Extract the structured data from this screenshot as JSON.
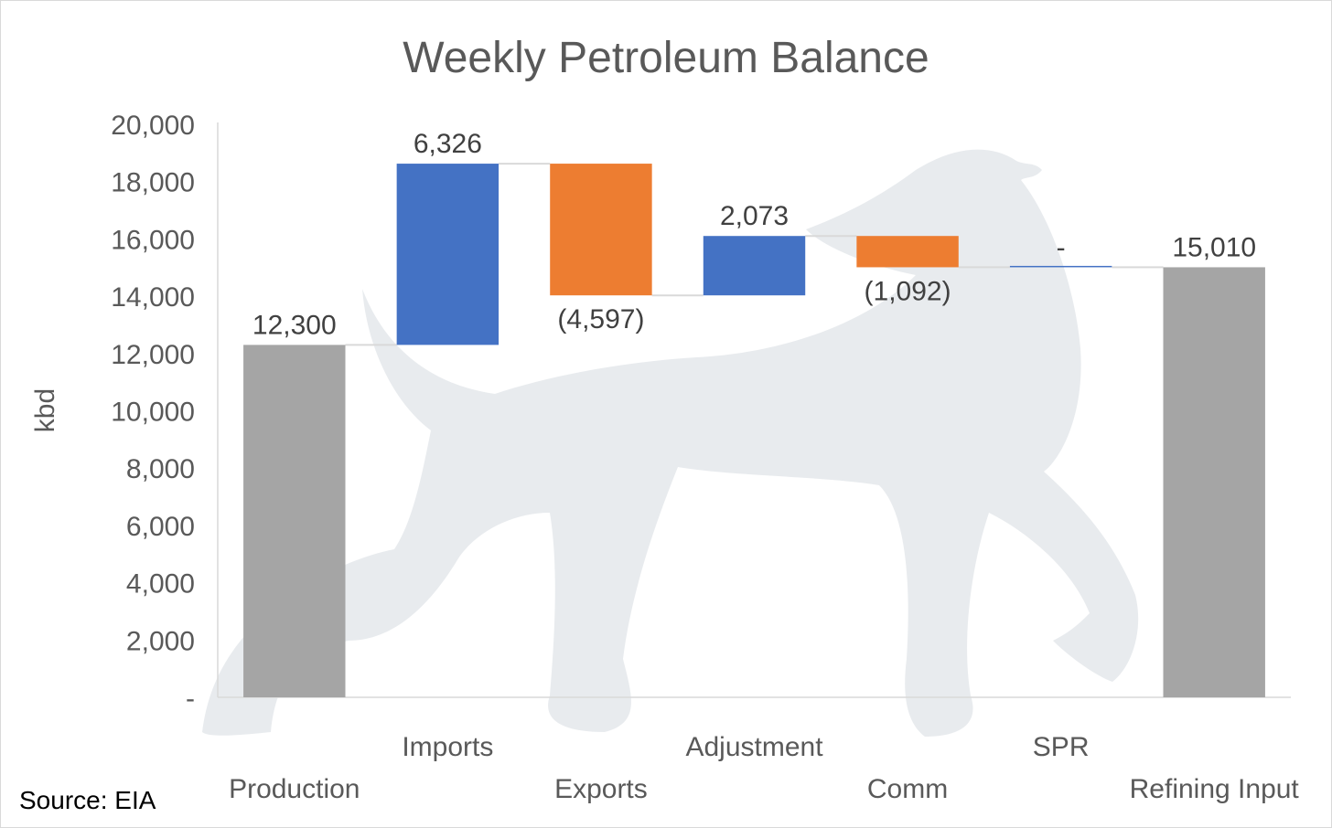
{
  "chart_data": {
    "type": "waterfall",
    "title": "Weekly Petroleum Balance",
    "ylabel": "kbd",
    "xlabel": "",
    "ylim": [
      0,
      20000
    ],
    "yticks": [
      0,
      2000,
      4000,
      6000,
      8000,
      10000,
      12000,
      14000,
      16000,
      18000,
      20000
    ],
    "ytick_labels": [
      "-",
      "2,000",
      "4,000",
      "6,000",
      "8,000",
      "10,000",
      "12,000",
      "14,000",
      "16,000",
      "18,000",
      "20,000"
    ],
    "categories": [
      "Production",
      "Imports",
      "Exports",
      "Adjustment",
      "Comm",
      "SPR",
      "Refining Input"
    ],
    "values": [
      12300,
      6326,
      -4597,
      2073,
      -1092,
      0,
      15010
    ],
    "bar_kinds": [
      "total",
      "increase",
      "decrease",
      "increase",
      "decrease",
      "increase",
      "total"
    ],
    "data_labels": [
      "12,300",
      "6,326",
      "(4,597)",
      "2,073",
      "(1,092)",
      "-",
      "15,010"
    ],
    "colors": {
      "increase": "#4472c4",
      "decrease": "#ed7d31",
      "total": "#a5a5a5",
      "connector": "#d9d9d9"
    },
    "grid": false,
    "legend": "none"
  },
  "source": "Source: EIA",
  "watermark": "greyhound-dog-logo"
}
